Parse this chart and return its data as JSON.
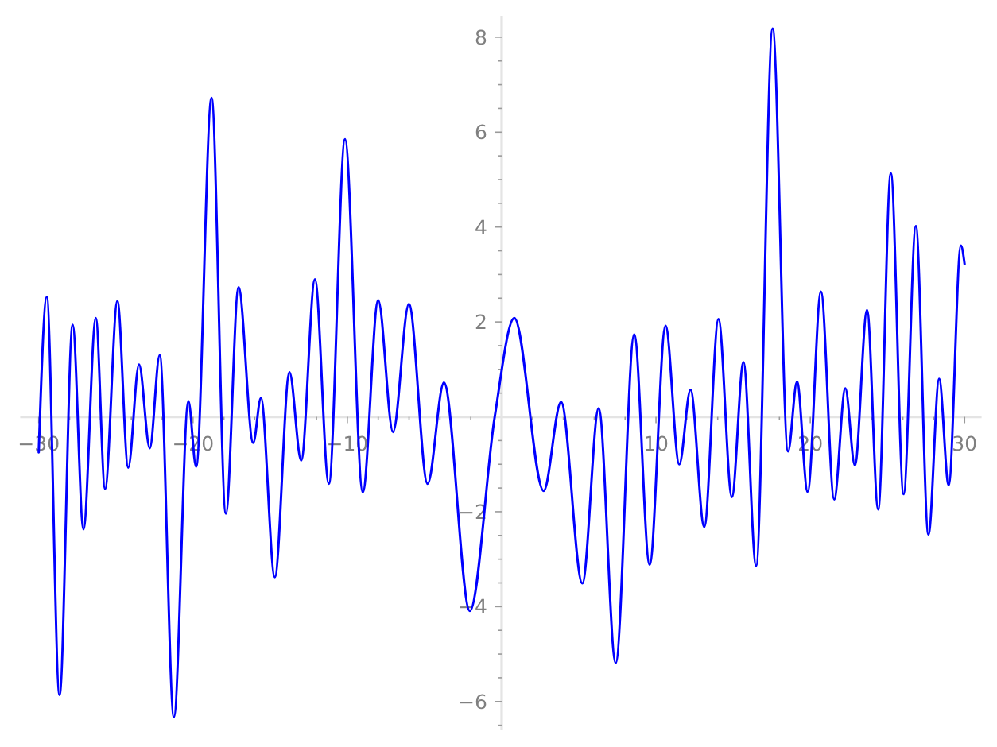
{
  "chart_data": {
    "type": "line",
    "color": "#0000ff",
    "x": [
      -30.0,
      -29.48,
      -28.65,
      -27.8,
      -27.1,
      -26.3,
      -25.7,
      -24.9,
      -24.2,
      -23.5,
      -22.8,
      -22.16,
      -21.24,
      -20.3,
      -19.8,
      -18.8,
      -17.87,
      -17.05,
      -16.1,
      -15.6,
      -14.7,
      -13.75,
      -12.99,
      -12.1,
      -11.2,
      -10.15,
      -9.0,
      -8.0,
      -7.04,
      -6.01,
      -4.8,
      -3.74,
      -2.06,
      -0.45,
      0.82,
      2.72,
      3.85,
      5.23,
      6.29,
      7.39,
      8.59,
      9.59,
      10.62,
      11.51,
      12.24,
      13.13,
      14.05,
      14.92,
      15.67,
      16.49,
      17.56,
      18.56,
      19.14,
      19.83,
      20.69,
      21.55,
      22.27,
      22.89,
      23.68,
      24.4,
      25.22,
      26.05,
      26.84,
      27.66,
      28.35,
      28.97,
      29.76,
      30.0
    ],
    "values": [
      -0.75,
      2.53,
      -5.86,
      1.94,
      -2.37,
      2.08,
      -1.52,
      2.44,
      -1.07,
      1.1,
      -0.66,
      1.3,
      -6.33,
      0.33,
      -1.05,
      6.72,
      -2.04,
      2.73,
      -0.55,
      0.4,
      -3.38,
      0.94,
      -0.92,
      2.9,
      -1.41,
      5.85,
      -1.59,
      2.46,
      -0.32,
      2.38,
      -1.41,
      0.72,
      -4.09,
      0.0,
      2.08,
      -1.56,
      0.31,
      -3.51,
      0.18,
      -5.19,
      1.74,
      -3.12,
      1.92,
      -1.0,
      0.57,
      -2.32,
      2.06,
      -1.69,
      1.15,
      -3.14,
      8.18,
      -0.73,
      0.74,
      -1.58,
      2.64,
      -1.74,
      0.6,
      -1.02,
      2.25,
      -1.95,
      5.13,
      -1.63,
      4.02,
      -2.48,
      0.8,
      -1.44,
      3.61,
      3.22
    ],
    "xlim": [
      -31.2,
      31.1
    ],
    "ylim": [
      -6.6,
      8.45
    ],
    "xticks": [
      -30,
      {
        "value": -28,
        "label": null
      },
      {
        "value": -26,
        "label": null
      },
      {
        "value": -24,
        "label": null
      },
      {
        "value": -22,
        "label": null
      },
      -20,
      {
        "value": -18,
        "label": null
      },
      {
        "value": -16,
        "label": null
      },
      {
        "value": -14,
        "label": null
      },
      {
        "value": -12,
        "label": null
      },
      -10,
      {
        "value": -8,
        "label": null
      },
      {
        "value": -6,
        "label": null
      },
      {
        "value": -4,
        "label": null
      },
      {
        "value": -2,
        "label": null
      },
      {
        "value": 2,
        "label": null
      },
      {
        "value": 4,
        "label": null
      },
      {
        "value": 6,
        "label": null
      },
      {
        "value": 8,
        "label": null
      },
      10,
      {
        "value": 12,
        "label": null
      },
      {
        "value": 14,
        "label": null
      },
      {
        "value": 16,
        "label": null
      },
      {
        "value": 18,
        "label": null
      },
      20,
      {
        "value": 22,
        "label": null
      },
      {
        "value": 24,
        "label": null
      },
      {
        "value": 26,
        "label": null
      },
      {
        "value": 28,
        "label": null
      },
      30
    ],
    "yticks": [
      {
        "value": -6.5,
        "label": null
      },
      -6,
      {
        "value": -5.5,
        "label": null
      },
      {
        "value": -5,
        "label": null
      },
      {
        "value": -4.5,
        "label": null
      },
      -4,
      {
        "value": -3.5,
        "label": null
      },
      {
        "value": -3,
        "label": null
      },
      {
        "value": -2.5,
        "label": null
      },
      -2,
      {
        "value": -1.5,
        "label": null
      },
      {
        "value": -1,
        "label": null
      },
      {
        "value": -0.5,
        "label": null
      },
      {
        "value": 0.5,
        "label": null
      },
      {
        "value": 1,
        "label": null
      },
      {
        "value": 1.5,
        "label": null
      },
      2,
      {
        "value": 2.5,
        "label": null
      },
      {
        "value": 3,
        "label": null
      },
      {
        "value": 3.5,
        "label": null
      },
      4,
      {
        "value": 4.5,
        "label": null
      },
      {
        "value": 5,
        "label": null
      },
      {
        "value": 5.5,
        "label": null
      },
      6,
      {
        "value": 6.5,
        "label": null
      },
      {
        "value": 7,
        "label": null
      },
      {
        "value": 7.5,
        "label": null
      },
      8
    ]
  }
}
